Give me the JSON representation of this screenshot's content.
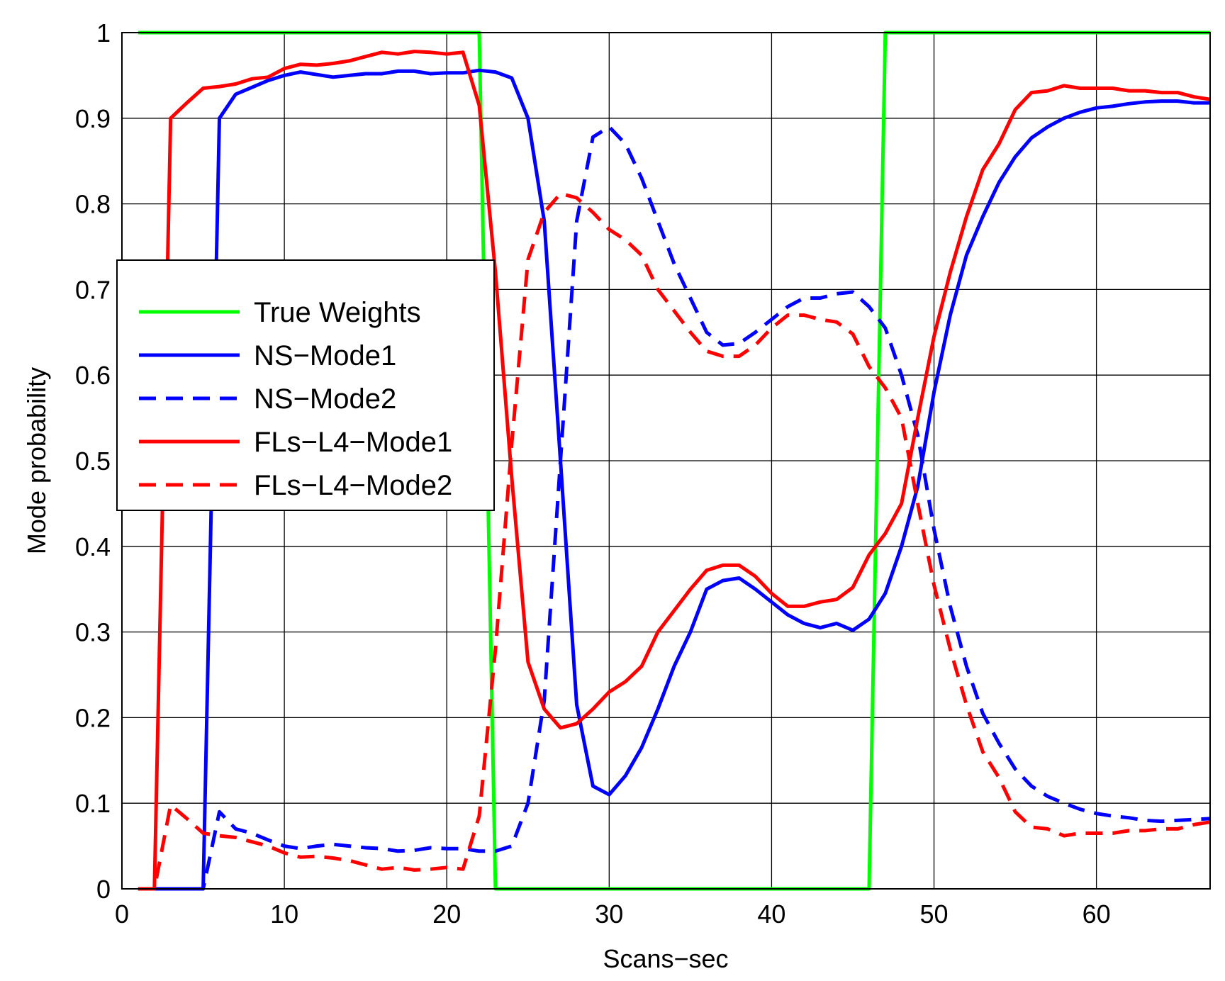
{
  "chart_data": {
    "type": "line",
    "title": "",
    "xlabel": "Scans−sec",
    "ylabel": "Mode probability",
    "xlim": [
      0,
      67
    ],
    "ylim": [
      0,
      1
    ],
    "xticks": [
      0,
      10,
      20,
      30,
      40,
      50,
      60
    ],
    "yticks": [
      0,
      0.1,
      0.2,
      0.3,
      0.4,
      0.5,
      0.6,
      0.7,
      0.8,
      0.9,
      1
    ],
    "xtick_labels": [
      "0",
      "10",
      "20",
      "30",
      "40",
      "50",
      "60"
    ],
    "ytick_labels": [
      "0",
      "0.1",
      "0.2",
      "0.3",
      "0.4",
      "0.5",
      "0.6",
      "0.7",
      "0.8",
      "0.9",
      "1"
    ],
    "grid": true,
    "legend_position": "center-left",
    "x": [
      1,
      2,
      3,
      4,
      5,
      6,
      7,
      8,
      9,
      10,
      11,
      12,
      13,
      14,
      15,
      16,
      17,
      18,
      19,
      20,
      21,
      22,
      23,
      24,
      25,
      26,
      27,
      28,
      29,
      30,
      31,
      32,
      33,
      34,
      35,
      36,
      37,
      38,
      39,
      40,
      41,
      42,
      43,
      44,
      45,
      46,
      47,
      48,
      49,
      50,
      51,
      52,
      53,
      54,
      55,
      56,
      57,
      58,
      59,
      60,
      61,
      62,
      63,
      64,
      65,
      66,
      67
    ],
    "series": [
      {
        "name": "True Weights",
        "color": "#00ff00",
        "dash": "solid",
        "values": [
          1,
          1,
          1,
          1,
          1,
          1,
          1,
          1,
          1,
          1,
          1,
          1,
          1,
          1,
          1,
          1,
          1,
          1,
          1,
          1,
          1,
          1,
          0,
          0,
          0,
          0,
          0,
          0,
          0,
          0,
          0,
          0,
          0,
          0,
          0,
          0,
          0,
          0,
          0,
          0,
          0,
          0,
          0,
          0,
          0,
          0,
          1,
          1,
          1,
          1,
          1,
          1,
          1,
          1,
          1,
          1,
          1,
          1,
          1,
          1,
          1,
          1,
          1,
          1,
          1,
          1,
          1
        ]
      },
      {
        "name": "NS−Mode1",
        "color": "#0000ff",
        "dash": "solid",
        "values": [
          0,
          0,
          0,
          0,
          0,
          0.9,
          0.928,
          0.936,
          0.944,
          0.95,
          0.954,
          0.951,
          0.948,
          0.95,
          0.952,
          0.952,
          0.955,
          0.955,
          0.952,
          0.953,
          0.953,
          0.956,
          0.954,
          0.947,
          0.9,
          0.78,
          0.5,
          0.215,
          0.12,
          0.11,
          0.132,
          0.165,
          0.21,
          0.26,
          0.3,
          0.35,
          0.36,
          0.363,
          0.35,
          0.335,
          0.32,
          0.31,
          0.305,
          0.31,
          0.302,
          0.315,
          0.345,
          0.4,
          0.47,
          0.58,
          0.67,
          0.74,
          0.785,
          0.825,
          0.855,
          0.877,
          0.89,
          0.9,
          0.907,
          0.912,
          0.914,
          0.917,
          0.919,
          0.92,
          0.92,
          0.918,
          0.918
        ]
      },
      {
        "name": "NS−Mode2",
        "color": "#0000ff",
        "dash": "dashed",
        "values": [
          0,
          0,
          0,
          0,
          0,
          0.09,
          0.07,
          0.065,
          0.057,
          0.05,
          0.047,
          0.05,
          0.052,
          0.05,
          0.048,
          0.047,
          0.044,
          0.045,
          0.048,
          0.047,
          0.047,
          0.044,
          0.044,
          0.05,
          0.1,
          0.22,
          0.5,
          0.78,
          0.878,
          0.89,
          0.87,
          0.83,
          0.78,
          0.73,
          0.69,
          0.65,
          0.635,
          0.637,
          0.65,
          0.665,
          0.68,
          0.69,
          0.69,
          0.695,
          0.697,
          0.68,
          0.655,
          0.6,
          0.53,
          0.42,
          0.33,
          0.26,
          0.205,
          0.17,
          0.14,
          0.12,
          0.108,
          0.1,
          0.093,
          0.088,
          0.085,
          0.083,
          0.08,
          0.079,
          0.08,
          0.081,
          0.082
        ]
      },
      {
        "name": "FLs−L4−Mode1",
        "color": "#ff0000",
        "dash": "solid",
        "values": [
          0,
          0,
          0.9,
          0.918,
          0.935,
          0.937,
          0.94,
          0.946,
          0.948,
          0.958,
          0.963,
          0.962,
          0.964,
          0.967,
          0.972,
          0.977,
          0.975,
          0.978,
          0.977,
          0.975,
          0.977,
          0.915,
          0.72,
          0.48,
          0.265,
          0.21,
          0.188,
          0.193,
          0.21,
          0.23,
          0.242,
          0.26,
          0.3,
          0.325,
          0.35,
          0.372,
          0.378,
          0.378,
          0.365,
          0.345,
          0.33,
          0.33,
          0.335,
          0.338,
          0.352,
          0.39,
          0.415,
          0.45,
          0.55,
          0.645,
          0.72,
          0.785,
          0.84,
          0.87,
          0.91,
          0.93,
          0.932,
          0.938,
          0.935,
          0.935,
          0.935,
          0.932,
          0.932,
          0.93,
          0.93,
          0.925,
          0.922
        ]
      },
      {
        "name": "FLs−L4−Mode2",
        "color": "#ff0000",
        "dash": "dashed",
        "values": [
          0,
          0,
          0.098,
          0.082,
          0.065,
          0.062,
          0.06,
          0.055,
          0.05,
          0.042,
          0.037,
          0.038,
          0.036,
          0.033,
          0.028,
          0.023,
          0.025,
          0.022,
          0.023,
          0.025,
          0.023,
          0.085,
          0.28,
          0.52,
          0.735,
          0.79,
          0.812,
          0.807,
          0.79,
          0.77,
          0.758,
          0.74,
          0.7,
          0.675,
          0.65,
          0.628,
          0.622,
          0.622,
          0.635,
          0.655,
          0.67,
          0.67,
          0.665,
          0.662,
          0.648,
          0.61,
          0.585,
          0.55,
          0.45,
          0.355,
          0.28,
          0.215,
          0.16,
          0.13,
          0.09,
          0.072,
          0.07,
          0.062,
          0.065,
          0.065,
          0.065,
          0.068,
          0.068,
          0.07,
          0.07,
          0.075,
          0.078
        ]
      }
    ]
  }
}
